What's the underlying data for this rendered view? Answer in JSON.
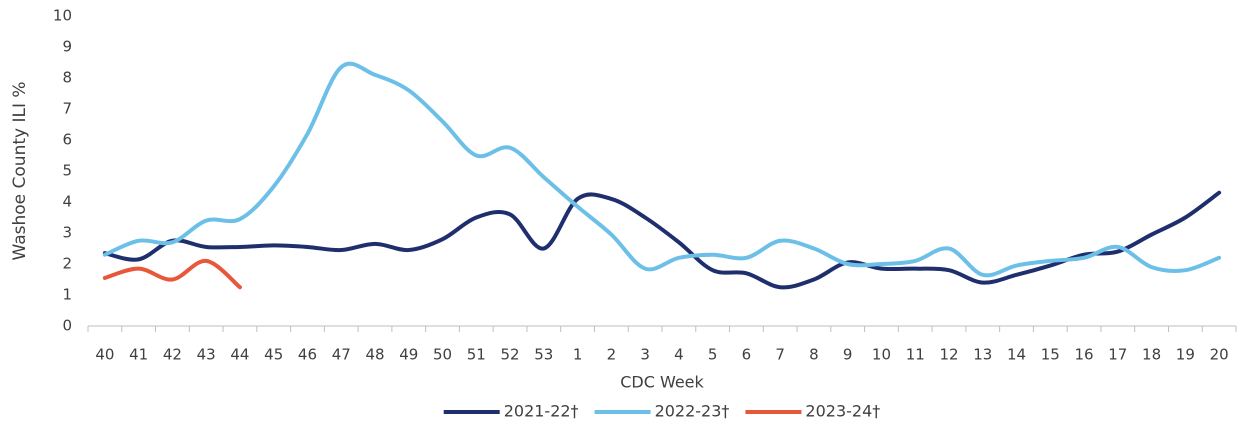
{
  "chart_data": {
    "type": "line",
    "y_label": "Washoe County ILI %",
    "x_label": "CDC Week",
    "categories": [
      "40",
      "41",
      "42",
      "43",
      "44",
      "45",
      "46",
      "47",
      "48",
      "49",
      "50",
      "51",
      "52",
      "53",
      "1",
      "2",
      "3",
      "4",
      "5",
      "6",
      "7",
      "8",
      "9",
      "10",
      "11",
      "12",
      "13",
      "14",
      "15",
      "16",
      "17",
      "18",
      "19",
      "20"
    ],
    "ylim": [
      0,
      10
    ],
    "yticks": [
      0,
      1,
      2,
      3,
      4,
      5,
      6,
      7,
      8,
      9,
      10
    ],
    "grid": false,
    "smooth": true,
    "legend": "bottom",
    "series": [
      {
        "name": "2021-22†",
        "color": "#1f2f6e",
        "values": [
          2.35,
          2.15,
          2.75,
          2.55,
          2.55,
          2.6,
          2.55,
          2.45,
          2.65,
          2.45,
          2.8,
          3.5,
          3.6,
          2.5,
          4.1,
          4.1,
          3.5,
          2.7,
          1.8,
          1.7,
          1.25,
          1.5,
          2.05,
          1.85,
          1.85,
          1.8,
          1.4,
          1.65,
          1.95,
          2.3,
          2.4,
          2.95,
          3.5,
          4.3
        ]
      },
      {
        "name": "2022-23†",
        "color": "#6cc0e8",
        "values": [
          2.3,
          2.75,
          2.7,
          3.4,
          3.45,
          4.5,
          6.2,
          8.35,
          8.1,
          7.6,
          6.6,
          5.5,
          5.75,
          4.8,
          3.85,
          2.95,
          1.85,
          2.2,
          2.3,
          2.2,
          2.75,
          2.5,
          2.0,
          2.0,
          2.1,
          2.5,
          1.65,
          1.95,
          2.1,
          2.2,
          2.55,
          1.9,
          1.8,
          2.2
        ]
      },
      {
        "name": "2023-24†",
        "color": "#e8573a",
        "values": [
          1.55,
          1.85,
          1.5,
          2.1,
          1.25,
          null,
          null,
          null,
          null,
          null,
          null,
          null,
          null,
          null,
          null,
          null,
          null,
          null,
          null,
          null,
          null,
          null,
          null,
          null,
          null,
          null,
          null,
          null,
          null,
          null,
          null,
          null,
          null,
          null
        ]
      }
    ]
  }
}
